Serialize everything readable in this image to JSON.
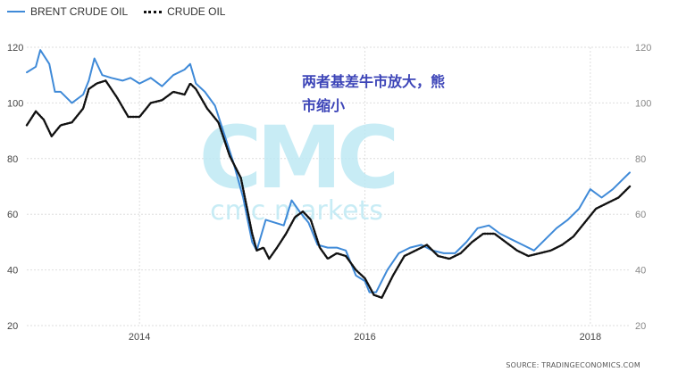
{
  "legend": {
    "brent_label": "BRENT CRUDE OIL",
    "crude_label": "CRUDE OIL"
  },
  "annotation": {
    "line1": "两者基差牛市放大，熊",
    "line2": "市缩小"
  },
  "watermark": {
    "logo": "CMC",
    "text": "cmc markets"
  },
  "source": "SOURCE: TRADINGECONOMICS.COM",
  "colors": {
    "brent": "#3f8ad8",
    "crude": "#111111",
    "annotation": "#3d45b8",
    "watermark": "#bfe9f4"
  },
  "chart_data": {
    "type": "line",
    "x_range": [
      2013.0,
      2018.35
    ],
    "ylim": [
      20,
      120
    ],
    "yticks": [
      20,
      40,
      60,
      80,
      100,
      120
    ],
    "xticks": [
      2014,
      2016,
      2018
    ],
    "xtick_labels": [
      "2014",
      "2016",
      "2018"
    ],
    "grid": true,
    "legend_position": "top-left",
    "series": [
      {
        "name": "BRENT CRUDE OIL",
        "style": "solid",
        "x": [
          2013.0,
          2013.08,
          2013.12,
          2013.2,
          2013.25,
          2013.3,
          2013.4,
          2013.5,
          2013.55,
          2013.6,
          2013.67,
          2013.75,
          2013.85,
          2013.92,
          2014.0,
          2014.1,
          2014.2,
          2014.3,
          2014.4,
          2014.45,
          2014.5,
          2014.58,
          2014.67,
          2014.75,
          2014.83,
          2014.92,
          2015.0,
          2015.04,
          2015.12,
          2015.2,
          2015.28,
          2015.35,
          2015.42,
          2015.5,
          2015.58,
          2015.67,
          2015.75,
          2015.83,
          2015.92,
          2016.0,
          2016.04,
          2016.1,
          2016.2,
          2016.3,
          2016.4,
          2016.5,
          2016.6,
          2016.7,
          2016.8,
          2016.9,
          2017.0,
          2017.1,
          2017.2,
          2017.3,
          2017.4,
          2017.5,
          2017.6,
          2017.7,
          2017.8,
          2017.9,
          2018.0,
          2018.1,
          2018.2,
          2018.3,
          2018.35
        ],
        "values": [
          111,
          113,
          119,
          114,
          104,
          104,
          100,
          103,
          108,
          116,
          110,
          109,
          108,
          109,
          107,
          109,
          106,
          110,
          112,
          114,
          107,
          104,
          99,
          89,
          79,
          66,
          50,
          47,
          58,
          57,
          56,
          65,
          61,
          57,
          49,
          48,
          48,
          47,
          38,
          36,
          32,
          32,
          40,
          46,
          48,
          49,
          47,
          46,
          46,
          50,
          55,
          56,
          53,
          51,
          49,
          47,
          51,
          55,
          58,
          62,
          69,
          66,
          69,
          73,
          75
        ]
      },
      {
        "name": "CRUDE OIL",
        "style": "dotted",
        "x": [
          2013.0,
          2013.08,
          2013.15,
          2013.22,
          2013.3,
          2013.4,
          2013.5,
          2013.55,
          2013.62,
          2013.7,
          2013.8,
          2013.9,
          2014.0,
          2014.1,
          2014.2,
          2014.3,
          2014.4,
          2014.45,
          2014.5,
          2014.6,
          2014.7,
          2014.8,
          2014.9,
          2015.0,
          2015.04,
          2015.1,
          2015.15,
          2015.22,
          2015.3,
          2015.38,
          2015.45,
          2015.52,
          2015.6,
          2015.67,
          2015.75,
          2015.83,
          2015.92,
          2016.0,
          2016.08,
          2016.15,
          2016.25,
          2016.35,
          2016.45,
          2016.55,
          2016.65,
          2016.75,
          2016.85,
          2016.95,
          2017.05,
          2017.15,
          2017.25,
          2017.35,
          2017.45,
          2017.55,
          2017.65,
          2017.75,
          2017.85,
          2017.95,
          2018.05,
          2018.15,
          2018.25,
          2018.35
        ],
        "values": [
          92,
          97,
          94,
          88,
          92,
          93,
          98,
          105,
          107,
          108,
          102,
          95,
          95,
          100,
          101,
          104,
          103,
          107,
          105,
          98,
          93,
          81,
          73,
          53,
          47,
          48,
          44,
          48,
          53,
          59,
          61,
          58,
          48,
          44,
          46,
          45,
          40,
          37,
          31,
          30,
          38,
          45,
          47,
          49,
          45,
          44,
          46,
          50,
          53,
          53,
          50,
          47,
          45,
          46,
          47,
          49,
          52,
          57,
          62,
          64,
          66,
          70
        ]
      }
    ]
  }
}
